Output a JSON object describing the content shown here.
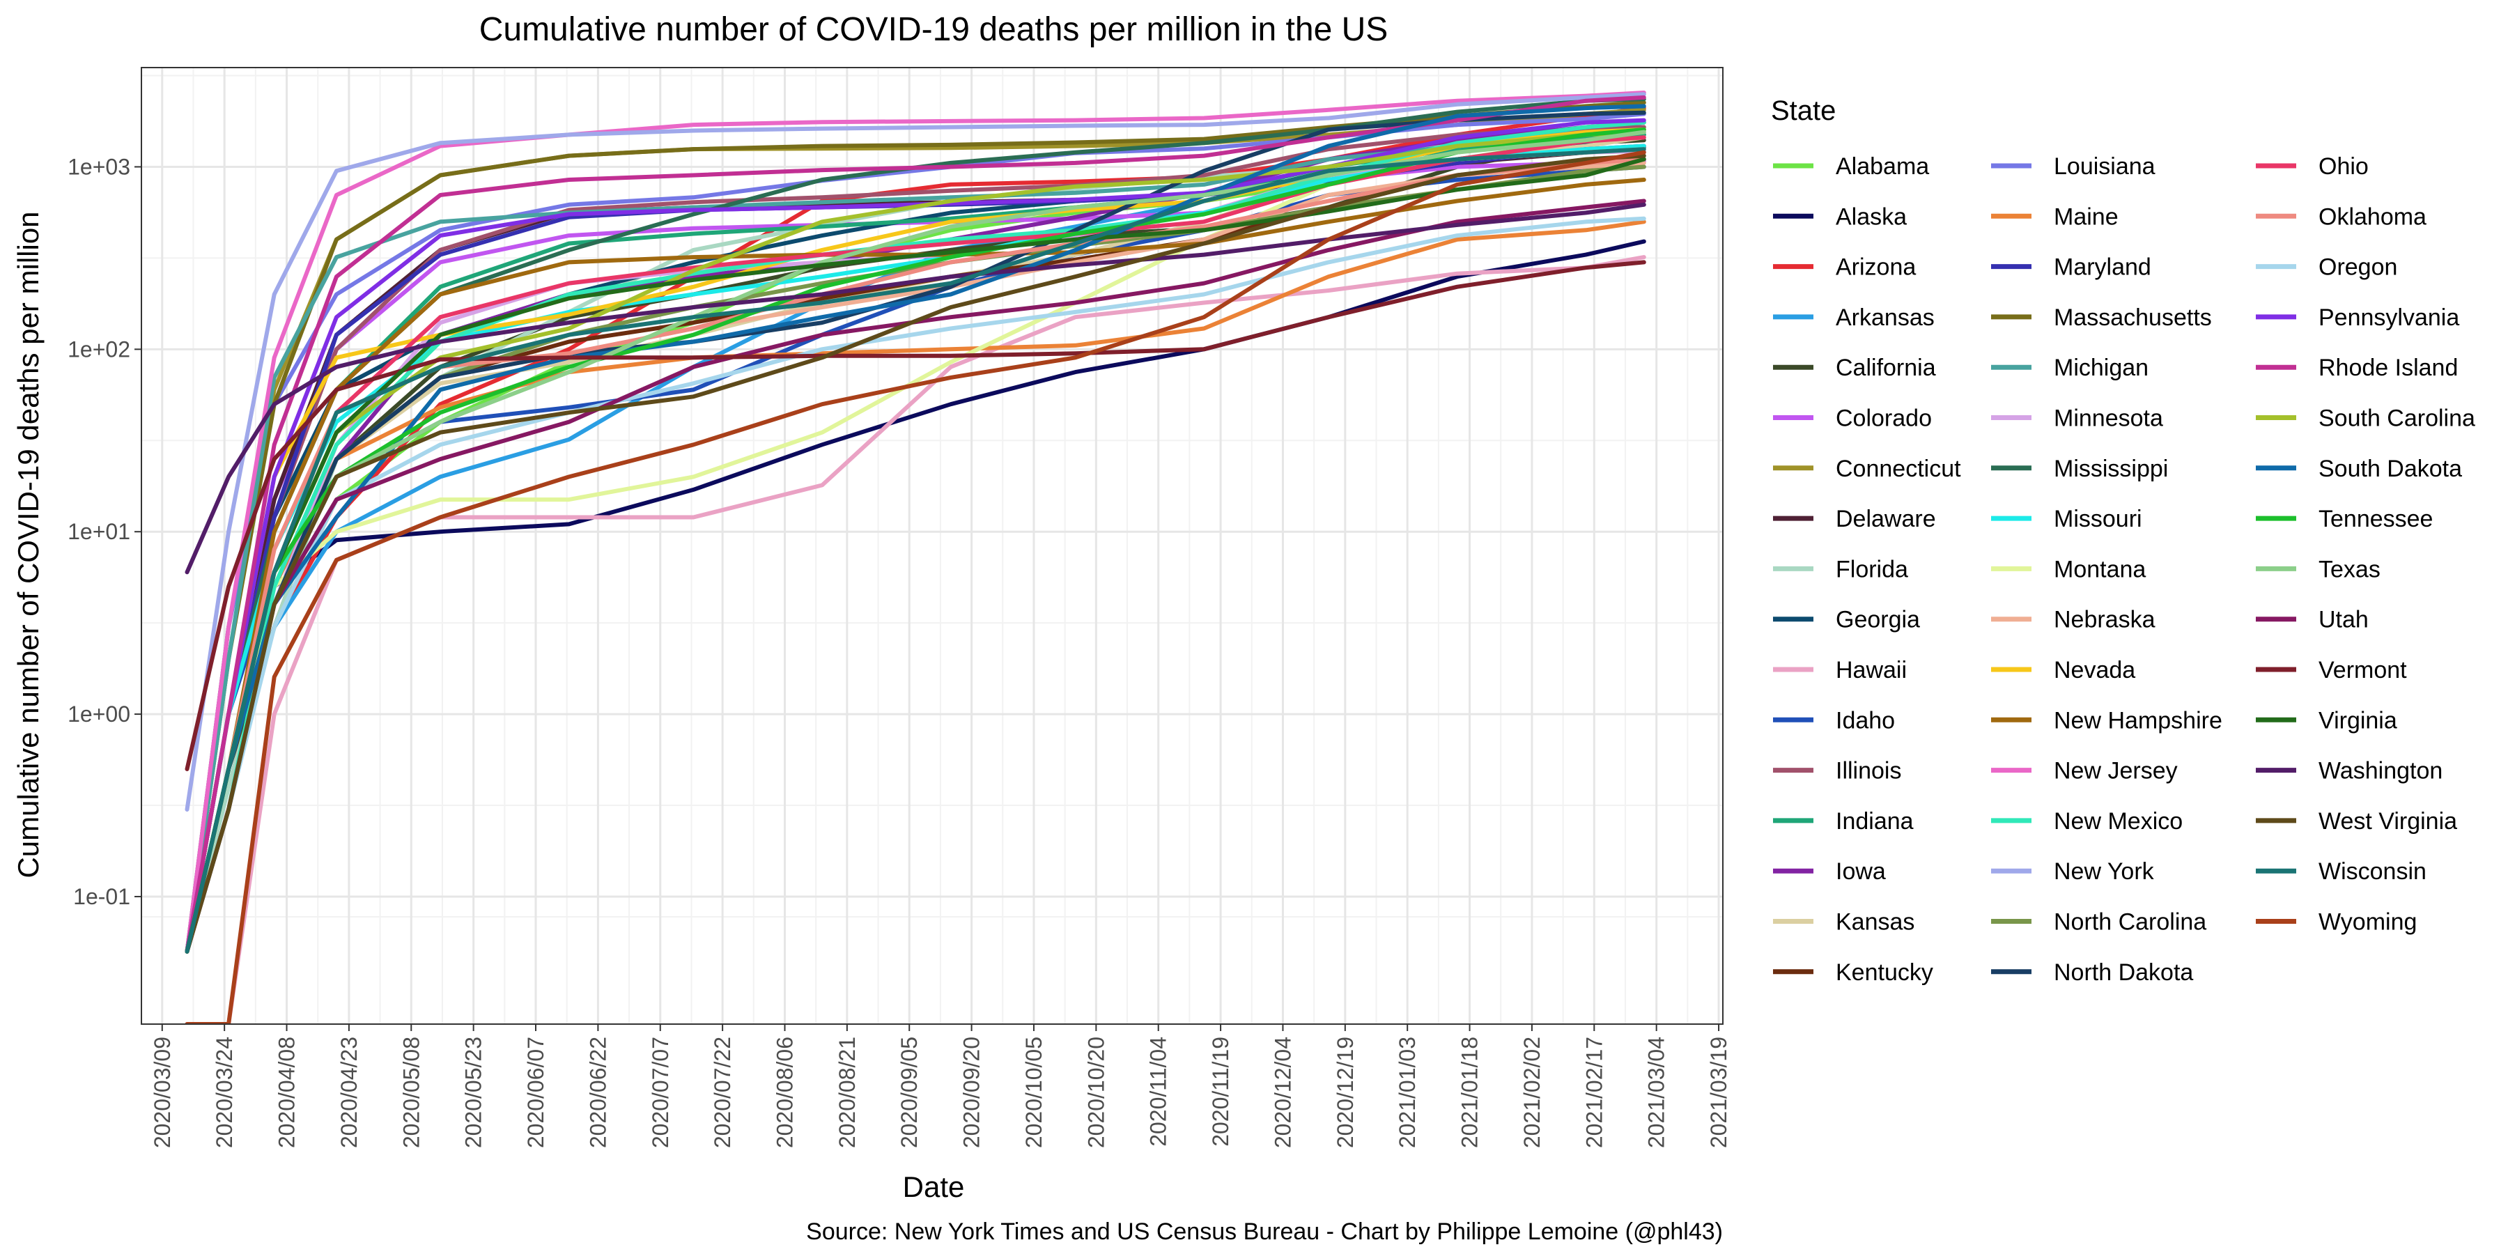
{
  "chart_data": {
    "type": "line",
    "title": "Cumulative number of COVID-19 deaths per million in the US",
    "xlabel": "Date",
    "ylabel": "Cumulative number of COVID-19 deaths per million",
    "caption": "Source: New York Times and US Census Bureau - Chart by Philippe Lemoine (@phl43)",
    "y_scale": "log10",
    "ylim": [
      0.02,
      3500
    ],
    "xlim": [
      "2020-03-04",
      "2021-03-20"
    ],
    "y_ticks": [
      0.1,
      1,
      10,
      100,
      1000
    ],
    "y_tick_labels": [
      "1e-01",
      "1e+00",
      "1e+01",
      "1e+02",
      "1e+03"
    ],
    "x_ticks": [
      "2020-03-09",
      "2020-03-24",
      "2020-04-08",
      "2020-04-23",
      "2020-05-08",
      "2020-05-23",
      "2020-06-07",
      "2020-06-22",
      "2020-07-07",
      "2020-07-22",
      "2020-08-06",
      "2020-08-21",
      "2020-09-05",
      "2020-09-20",
      "2020-10-05",
      "2020-10-20",
      "2020-11-04",
      "2020-11-19",
      "2020-12-04",
      "2020-12-19",
      "2021-01-03",
      "2021-01-18",
      "2021-02-02",
      "2021-02-17",
      "2021-03-04",
      "2021-03-19"
    ],
    "x_tick_labels": [
      "2020/03/09",
      "2020/03/24",
      "2020/04/08",
      "2020/04/23",
      "2020/05/08",
      "2020/05/23",
      "2020/06/07",
      "2020/06/22",
      "2020/07/07",
      "2020/07/22",
      "2020/08/06",
      "2020/08/21",
      "2020/09/05",
      "2020/09/20",
      "2020/10/05",
      "2020/10/20",
      "2020/11/04",
      "2020/11/19",
      "2020/12/04",
      "2020/12/19",
      "2021/01/03",
      "2021/01/18",
      "2021/02/02",
      "2021/02/17",
      "2021/03/04",
      "2021/03/19"
    ],
    "grid": true,
    "legend": {
      "title": "State",
      "position": "right",
      "columns": 3
    },
    "series_dates": [
      "2020-03-15",
      "2020-03-25",
      "2020-04-05",
      "2020-04-20",
      "2020-05-15",
      "2020-06-15",
      "2020-07-15",
      "2020-08-15",
      "2020-09-15",
      "2020-10-15",
      "2020-11-15",
      "2020-12-15",
      "2021-01-15",
      "2021-02-15",
      "2021-03-01"
    ],
    "series": [
      {
        "name": "Alabama",
        "color": "#6ce346",
        "values": [
          0.05,
          0.4,
          3,
          15,
          40,
          85,
          140,
          300,
          450,
          560,
          650,
          830,
          1100,
          1400,
          1650
        ]
      },
      {
        "name": "Alaska",
        "color": "#0b0a5c",
        "values": [
          0.05,
          0.5,
          5,
          9,
          10,
          11,
          17,
          30,
          50,
          75,
          100,
          150,
          250,
          330,
          390
        ]
      },
      {
        "name": "Arizona",
        "color": "#e52b32",
        "values": [
          0.05,
          0.5,
          3,
          12,
          50,
          100,
          250,
          650,
          800,
          830,
          880,
          1100,
          1500,
          1900,
          2100
        ]
      },
      {
        "name": "Arkansas",
        "color": "#2a9ee3",
        "values": [
          0.05,
          0.4,
          3,
          10,
          20,
          32,
          80,
          180,
          350,
          470,
          650,
          900,
          1300,
          1600,
          1750
        ]
      },
      {
        "name": "California",
        "color": "#3b4a28",
        "values": [
          0.05,
          0.5,
          3,
          25,
          80,
          150,
          200,
          280,
          350,
          420,
          460,
          600,
          1000,
          1350,
          1400
        ]
      },
      {
        "name": "Colorado",
        "color": "#c156f0",
        "values": [
          0.05,
          1,
          15,
          100,
          300,
          420,
          460,
          480,
          500,
          520,
          560,
          850,
          1000,
          1050,
          1070
        ]
      },
      {
        "name": "Connecticut",
        "color": "#9f9229",
        "values": [
          0.05,
          3,
          60,
          400,
          900,
          1150,
          1250,
          1260,
          1270,
          1300,
          1350,
          1500,
          1700,
          1950,
          2050
        ]
      },
      {
        "name": "Delaware",
        "color": "#4f2135",
        "values": [
          0.05,
          1,
          15,
          120,
          350,
          560,
          600,
          620,
          640,
          660,
          700,
          850,
          1050,
          1200,
          1280
        ]
      },
      {
        "name": "Florida",
        "color": "#a9d8c2",
        "values": [
          0.05,
          0.4,
          3,
          25,
          70,
          160,
          350,
          480,
          650,
          760,
          880,
          1000,
          1400,
          1480,
          1500
        ]
      },
      {
        "name": "Georgia",
        "color": "#0c4a6e",
        "values": [
          0.05,
          1,
          12,
          60,
          120,
          200,
          300,
          420,
          560,
          650,
          720,
          900,
          1100,
          1350,
          1500
        ]
      },
      {
        "name": "Hawaii",
        "color": "#eaa2c4",
        "values": [
          0.02,
          0.02,
          1,
          7,
          12,
          12,
          12,
          18,
          80,
          150,
          180,
          210,
          260,
          280,
          320
        ]
      },
      {
        "name": "Idaho",
        "color": "#2050b8",
        "values": [
          0.05,
          1,
          6,
          20,
          40,
          48,
          60,
          120,
          220,
          330,
          450,
          700,
          850,
          950,
          1000
        ]
      },
      {
        "name": "Illinois",
        "color": "#a1516b",
        "values": [
          0.05,
          1,
          12,
          100,
          350,
          580,
          640,
          680,
          740,
          790,
          900,
          1250,
          1500,
          1620,
          1650
        ]
      },
      {
        "name": "Indiana",
        "color": "#1fa678",
        "values": [
          0.05,
          1,
          10,
          60,
          220,
          380,
          430,
          470,
          520,
          600,
          700,
          1000,
          1250,
          1450,
          1500
        ]
      },
      {
        "name": "Iowa",
        "color": "#8223a3",
        "values": [
          0.05,
          0.5,
          5,
          25,
          120,
          200,
          250,
          300,
          400,
          530,
          720,
          1100,
          1400,
          1650,
          1750
        ]
      },
      {
        "name": "Kansas",
        "color": "#dbcfa1",
        "values": [
          0.05,
          0.5,
          5,
          25,
          65,
          85,
          120,
          180,
          250,
          330,
          500,
          850,
          1100,
          1300,
          1450
        ]
      },
      {
        "name": "Kentucky",
        "color": "#6b2c0f",
        "values": [
          0.05,
          0.5,
          5,
          25,
          70,
          110,
          140,
          190,
          250,
          310,
          400,
          600,
          900,
          1050,
          1100
        ]
      },
      {
        "name": "Louisiana",
        "color": "#7578e6",
        "values": [
          0.05,
          3,
          50,
          200,
          450,
          620,
          680,
          840,
          1000,
          1190,
          1260,
          1450,
          1700,
          1830,
          1950
        ]
      },
      {
        "name": "Maine",
        "color": "#eb8236",
        "values": [
          0.05,
          0.5,
          5,
          25,
          48,
          75,
          90,
          95,
          100,
          105,
          130,
          250,
          400,
          450,
          500
        ]
      },
      {
        "name": "Maryland",
        "color": "#3530b0",
        "values": [
          0.05,
          1,
          12,
          120,
          330,
          530,
          580,
          600,
          620,
          650,
          700,
          840,
          1050,
          1250,
          1300
        ]
      },
      {
        "name": "Massachusetts",
        "color": "#776d19",
        "values": [
          0.05,
          2,
          50,
          400,
          900,
          1150,
          1250,
          1300,
          1320,
          1360,
          1420,
          1650,
          1900,
          2150,
          2250
        ]
      },
      {
        "name": "Michigan",
        "color": "#48a39f",
        "values": [
          0.05,
          2,
          70,
          320,
          500,
          560,
          600,
          640,
          680,
          720,
          800,
          1100,
          1300,
          1550,
          1600
        ]
      },
      {
        "name": "Minnesota",
        "color": "#d5a3e6",
        "values": [
          0.05,
          0.5,
          4,
          30,
          140,
          230,
          270,
          300,
          330,
          420,
          560,
          900,
          1100,
          1200,
          1220
        ]
      },
      {
        "name": "Mississippi",
        "color": "#2a6d53",
        "values": [
          0.05,
          1,
          10,
          60,
          200,
          350,
          550,
          850,
          1050,
          1200,
          1350,
          1600,
          2000,
          2300,
          2350
        ]
      },
      {
        "name": "Missouri",
        "color": "#1ceae8",
        "values": [
          0.05,
          1,
          8,
          40,
          110,
          160,
          200,
          250,
          320,
          450,
          560,
          850,
          1100,
          1250,
          1300
        ]
      },
      {
        "name": "Montana",
        "color": "#e1f59a",
        "values": [
          0.05,
          0.5,
          5,
          10,
          15,
          15,
          20,
          35,
          85,
          180,
          400,
          800,
          1100,
          1200,
          1250
        ]
      },
      {
        "name": "Nebraska",
        "color": "#f0ae93",
        "values": [
          0.05,
          0.3,
          4,
          25,
          70,
          95,
          130,
          170,
          220,
          300,
          400,
          700,
          900,
          1000,
          1050
        ]
      },
      {
        "name": "Nevada",
        "color": "#f7c719",
        "values": [
          0.05,
          1,
          20,
          90,
          120,
          155,
          220,
          350,
          500,
          580,
          650,
          900,
          1300,
          1550,
          1600
        ]
      },
      {
        "name": "New Hampshire",
        "color": "#a0690f",
        "values": [
          0.05,
          0.5,
          10,
          60,
          200,
          300,
          320,
          330,
          330,
          340,
          380,
          500,
          650,
          800,
          850
        ]
      },
      {
        "name": "New Jersey",
        "color": "#ea67c7",
        "values": [
          0.05,
          3,
          90,
          700,
          1300,
          1500,
          1700,
          1760,
          1780,
          1800,
          1850,
          2050,
          2300,
          2450,
          2550
        ]
      },
      {
        "name": "New Mexico",
        "color": "#30e8b8",
        "values": [
          0.05,
          0.3,
          5,
          30,
          110,
          200,
          260,
          330,
          400,
          450,
          550,
          900,
          1350,
          1650,
          1750
        ]
      },
      {
        "name": "New York",
        "color": "#9fa8ea",
        "values": [
          0.3,
          10,
          200,
          950,
          1350,
          1500,
          1580,
          1620,
          1650,
          1680,
          1700,
          1850,
          2200,
          2400,
          2500
        ]
      },
      {
        "name": "North Carolina",
        "color": "#79964a",
        "values": [
          0.05,
          0.5,
          4,
          25,
          70,
          120,
          170,
          230,
          300,
          370,
          450,
          600,
          750,
          950,
          1000
        ]
      },
      {
        "name": "North Dakota",
        "color": "#183e64",
        "values": [
          0.05,
          0.5,
          4,
          25,
          70,
          95,
          110,
          140,
          220,
          450,
          950,
          1600,
          1800,
          1950,
          1980
        ]
      },
      {
        "name": "Ohio",
        "color": "#e93667",
        "values": [
          0.05,
          0.5,
          6,
          45,
          150,
          230,
          280,
          330,
          380,
          430,
          500,
          800,
          1100,
          1380,
          1450
        ]
      },
      {
        "name": "Oklahoma",
        "color": "#ee8a80",
        "values": [
          0.05,
          0.5,
          8,
          45,
          80,
          95,
          130,
          200,
          300,
          380,
          470,
          650,
          900,
          1050,
          1100
        ]
      },
      {
        "name": "Oregon",
        "color": "#a6d6ec",
        "values": [
          0.05,
          0.3,
          3,
          15,
          30,
          45,
          65,
          100,
          130,
          160,
          200,
          300,
          420,
          500,
          520
        ]
      },
      {
        "name": "Pennsylvania",
        "color": "#7f2ee5",
        "values": [
          0.05,
          1,
          20,
          150,
          420,
          550,
          580,
          600,
          630,
          660,
          720,
          1000,
          1450,
          1750,
          1800
        ]
      },
      {
        "name": "Rhode Island",
        "color": "#c12f93",
        "values": [
          0.05,
          1,
          30,
          250,
          700,
          850,
          900,
          960,
          1000,
          1050,
          1150,
          1450,
          1800,
          2300,
          2400
        ]
      },
      {
        "name": "South Carolina",
        "color": "#a4c02b",
        "values": [
          0.05,
          0.5,
          6,
          35,
          90,
          130,
          270,
          500,
          650,
          780,
          850,
          1000,
          1300,
          1500,
          1550
        ]
      },
      {
        "name": "South Dakota",
        "color": "#0f6aa9",
        "values": [
          0.05,
          0.5,
          4,
          12,
          60,
          90,
          110,
          150,
          200,
          350,
          700,
          1300,
          1900,
          2100,
          2150
        ]
      },
      {
        "name": "Tennessee",
        "color": "#1cbf2c",
        "values": [
          0.05,
          0.5,
          6,
          20,
          45,
          80,
          120,
          220,
          320,
          430,
          550,
          800,
          1200,
          1500,
          1600
        ]
      },
      {
        "name": "Texas",
        "color": "#8ccf8a",
        "values": [
          0.05,
          0.3,
          4,
          20,
          40,
          75,
          150,
          300,
          470,
          600,
          700,
          900,
          1200,
          1400,
          1550
        ]
      },
      {
        "name": "Utah",
        "color": "#861862",
        "values": [
          0.05,
          0.3,
          4,
          15,
          25,
          40,
          80,
          120,
          150,
          180,
          230,
          350,
          500,
          600,
          650
        ]
      },
      {
        "name": "Vermont",
        "color": "#7f1f2b",
        "values": [
          0.5,
          5,
          25,
          60,
          88,
          90,
          90,
          92,
          92,
          95,
          100,
          150,
          220,
          280,
          300
        ]
      },
      {
        "name": "Virginia",
        "color": "#226b1a",
        "values": [
          0.05,
          0.5,
          6,
          35,
          120,
          190,
          240,
          290,
          340,
          400,
          450,
          570,
          750,
          900,
          1100
        ]
      },
      {
        "name": "Washington",
        "color": "#521d68",
        "values": [
          6,
          20,
          50,
          80,
          110,
          140,
          170,
          200,
          250,
          290,
          330,
          400,
          480,
          560,
          620
        ]
      },
      {
        "name": "West Virginia",
        "color": "#5e4a1a",
        "values": [
          0.05,
          0.3,
          4,
          20,
          35,
          45,
          55,
          90,
          170,
          250,
          380,
          600,
          900,
          1100,
          1150
        ]
      },
      {
        "name": "Wisconsin",
        "color": "#1a7474",
        "values": [
          0.05,
          0.5,
          6,
          45,
          80,
          120,
          150,
          180,
          230,
          380,
          650,
          950,
          1100,
          1200,
          1250
        ]
      },
      {
        "name": "Wyoming",
        "color": "#a9401a",
        "values": [
          0.02,
          0.02,
          1.6,
          7,
          12,
          20,
          30,
          50,
          70,
          90,
          150,
          400,
          800,
          1050,
          1200
        ]
      }
    ]
  }
}
